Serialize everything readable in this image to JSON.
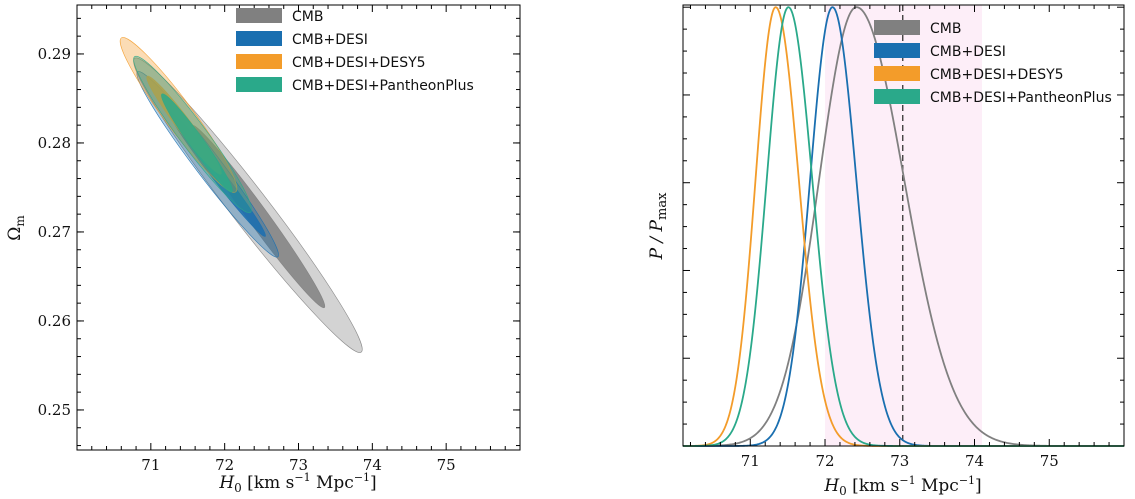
{
  "chart_data": [
    {
      "type": "contour",
      "xlabel": "H₀ [km s⁻¹ Mpc⁻¹]",
      "ylabel": "Ωm",
      "xlim": [
        70.0,
        76.0
      ],
      "ylim": [
        0.2455,
        0.2955
      ],
      "xticks": [
        71,
        72,
        73,
        74,
        75
      ],
      "xtick_labels": [
        "71",
        "72",
        "73",
        "74",
        "75"
      ],
      "yticks": [
        0.25,
        0.26,
        0.27,
        0.28,
        0.29
      ],
      "ytick_labels": [
        "0.25",
        "0.26",
        "0.27",
        "0.28",
        "0.29"
      ],
      "legend_position": "top-right",
      "series": [
        {
          "name": "CMB",
          "color": "#808080",
          "outer": {
            "start": [
              70.78,
              0.2895
            ],
            "end": [
              73.85,
              0.2565
            ],
            "width": 0.0042
          },
          "inner": {
            "start": [
              71.55,
              0.282
            ],
            "end": [
              73.35,
              0.2615
            ],
            "width": 0.0022
          }
        },
        {
          "name": "CMB+DESI",
          "color": "#1a6fb0",
          "outer": {
            "start": [
              70.82,
              0.288
            ],
            "end": [
              72.72,
              0.2672
            ],
            "width": 0.0028
          },
          "inner": {
            "start": [
              71.25,
              0.2835
            ],
            "end": [
              72.55,
              0.2695
            ],
            "width": 0.0014
          }
        },
        {
          "name": "CMB+DESI+DESY5",
          "color": "#f39c2a",
          "outer": {
            "start": [
              70.6,
              0.2918
            ],
            "end": [
              72.15,
              0.2745
            ],
            "width": 0.0032
          },
          "inner": {
            "start": [
              70.95,
              0.2875
            ],
            "end": [
              71.95,
              0.2765
            ],
            "width": 0.0016
          }
        },
        {
          "name": "CMB+DESI+PantheonPlus",
          "color": "#2aa98a",
          "outer": {
            "start": [
              70.78,
              0.2897
            ],
            "end": [
              72.35,
              0.2722
            ],
            "width": 0.003
          },
          "inner": {
            "start": [
              71.15,
              0.2855
            ],
            "end": [
              72.1,
              0.2745
            ],
            "width": 0.0016
          }
        }
      ]
    },
    {
      "type": "line",
      "xlabel": "H₀ [km s⁻¹ Mpc⁻¹]",
      "ylabel": "P / P_max",
      "xlim": [
        70.1,
        76.0
      ],
      "ylim": [
        0,
        1.005
      ],
      "xticks": [
        71,
        72,
        73,
        74,
        75
      ],
      "xtick_labels": [
        "71",
        "72",
        "73",
        "74",
        "75"
      ],
      "legend_position": "top-right",
      "band": {
        "x": [
          72.0,
          74.1
        ],
        "color": "#fdeef8"
      },
      "vline": {
        "x": 73.04
      },
      "series": [
        {
          "name": "CMB",
          "color": "#808080",
          "peak": 72.42,
          "sigma_left": 0.5,
          "sigma_right": 0.64
        },
        {
          "name": "CMB+DESI",
          "color": "#1a6fb0",
          "peak": 72.1,
          "sigma_left": 0.3,
          "sigma_right": 0.32
        },
        {
          "name": "CMB+DESI+DESY5",
          "color": "#f39c2a",
          "peak": 71.34,
          "sigma_left": 0.27,
          "sigma_right": 0.31
        },
        {
          "name": "CMB+DESI+PantheonPlus",
          "color": "#2aa98a",
          "peak": 71.51,
          "sigma_left": 0.29,
          "sigma_right": 0.32
        }
      ]
    }
  ]
}
